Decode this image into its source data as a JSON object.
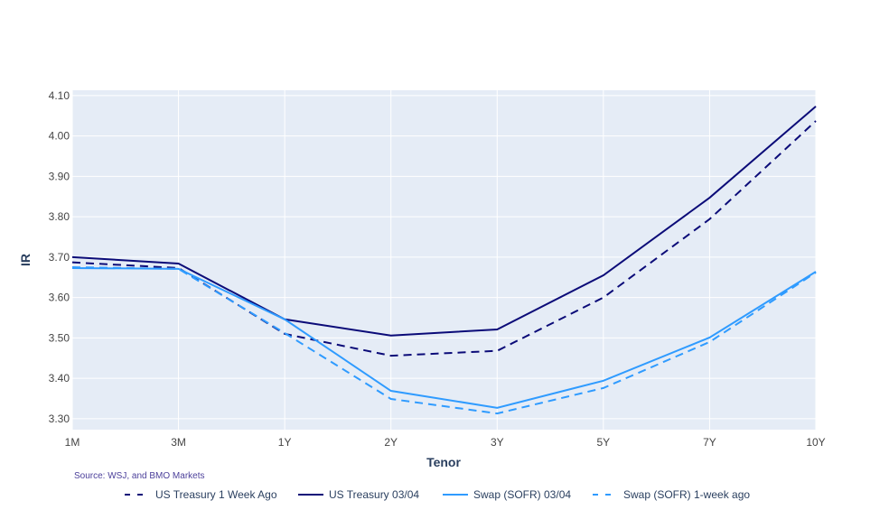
{
  "chart_data": {
    "type": "line",
    "categories": [
      "1M",
      "3M",
      "1Y",
      "2Y",
      "3Y",
      "5Y",
      "7Y",
      "10Y"
    ],
    "xlabel": "Tenor",
    "ylabel": "IR",
    "ylim": [
      3.273,
      4.113
    ],
    "yticks": [
      "3.30",
      "3.40",
      "3.50",
      "3.60",
      "3.70",
      "3.80",
      "3.90",
      "4.00",
      "4.10"
    ],
    "grid": true,
    "legend_placement": "bottom",
    "annotation": "Source: WSJ, and BMO Markets",
    "series": [
      {
        "name": "US Treasury 1 Week Ago",
        "color": "#0b0b78",
        "dash": true,
        "values": [
          3.687,
          3.673,
          3.51,
          3.456,
          3.468,
          3.6,
          3.794,
          4.037
        ]
      },
      {
        "name": "US Treasury 03/04",
        "color": "#0b0b78",
        "dash": false,
        "values": [
          3.7,
          3.684,
          3.546,
          3.506,
          3.521,
          3.655,
          3.847,
          4.073
        ]
      },
      {
        "name": "Swap (SOFR) 03/04",
        "color": "#2f9bff",
        "dash": false,
        "values": [
          3.673,
          3.671,
          3.546,
          3.369,
          3.327,
          3.394,
          3.501,
          3.664
        ]
      },
      {
        "name": "Swap (SOFR) 1-week ago",
        "color": "#2f9bff",
        "dash": true,
        "values": [
          3.675,
          3.671,
          3.512,
          3.349,
          3.313,
          3.376,
          3.49,
          3.662
        ]
      }
    ]
  }
}
